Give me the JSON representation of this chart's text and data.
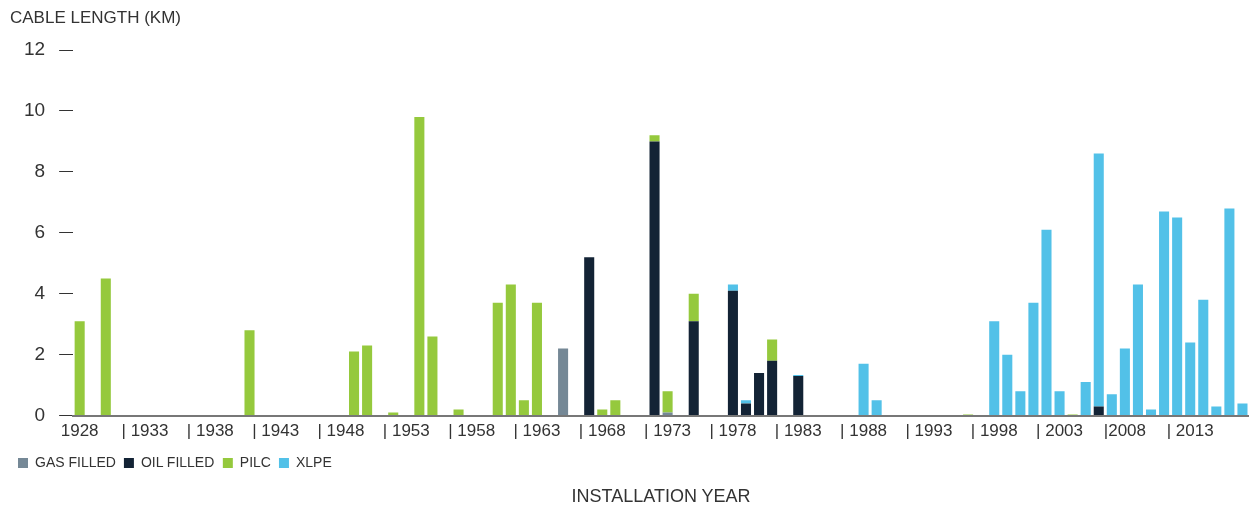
{
  "chart_data": {
    "type": "bar",
    "stacked": true,
    "ylabel": "CABLE LENGTH (KM)",
    "xlabel": "INSTALLATION YEAR",
    "legend": "bottom left",
    "ylim": [
      0,
      12
    ],
    "yticks": [
      0,
      2,
      4,
      6,
      8,
      10,
      12
    ],
    "categories": [
      "1928",
      null,
      null,
      null,
      null,
      "| 1933",
      null,
      null,
      null,
      null,
      "| 1938",
      null,
      null,
      null,
      null,
      "| 1943",
      null,
      null,
      null,
      null,
      "| 1948",
      null,
      null,
      null,
      null,
      "| 1953",
      null,
      null,
      null,
      null,
      "| 1958",
      null,
      null,
      null,
      null,
      "| 1963",
      null,
      null,
      null,
      null,
      "| 1968",
      null,
      null,
      null,
      null,
      "| 1973",
      null,
      null,
      null,
      null,
      "| 1978",
      null,
      null,
      null,
      null,
      "| 1983",
      null,
      null,
      null,
      null,
      "| 1988",
      null,
      null,
      null,
      null,
      "| 1993",
      null,
      null,
      null,
      null,
      "| 1998",
      null,
      null,
      null,
      null,
      "| 2003",
      null,
      null,
      null,
      null,
      "|2008",
      null,
      null,
      null,
      null,
      "| 2013",
      null,
      null,
      null,
      null
    ],
    "series": [
      {
        "name": "GAS FILLED",
        "color": "#758896",
        "values": [
          null,
          null,
          null,
          null,
          null,
          null,
          null,
          null,
          null,
          null,
          null,
          null,
          null,
          null,
          null,
          null,
          null,
          null,
          null,
          null,
          null,
          null,
          null,
          null,
          null,
          null,
          null,
          null,
          null,
          null,
          null,
          null,
          null,
          null,
          null,
          null,
          null,
          2.2,
          null,
          null,
          null,
          null,
          null,
          null,
          null,
          0.1,
          null,
          null,
          null,
          null,
          null,
          null,
          null,
          null,
          null,
          null,
          null,
          null,
          null,
          null,
          null,
          null,
          null,
          null,
          null,
          null,
          null,
          null,
          null,
          null,
          null,
          null,
          null,
          null,
          null,
          null,
          null,
          null,
          null,
          null,
          null,
          null,
          null,
          null,
          null,
          null,
          null,
          null,
          null,
          null
        ]
      },
      {
        "name": "OIL FILLED",
        "color": "#132335",
        "values": [
          null,
          null,
          null,
          null,
          null,
          null,
          null,
          null,
          null,
          null,
          null,
          null,
          null,
          null,
          null,
          null,
          null,
          null,
          null,
          null,
          null,
          null,
          null,
          null,
          null,
          null,
          null,
          null,
          null,
          null,
          null,
          null,
          null,
          null,
          null,
          null,
          null,
          null,
          null,
          5.2,
          null,
          null,
          null,
          null,
          9.0,
          null,
          null,
          3.1,
          null,
          null,
          4.1,
          0.4,
          1.4,
          1.8,
          null,
          1.3,
          null,
          null,
          null,
          null,
          null,
          null,
          null,
          null,
          null,
          null,
          null,
          null,
          null,
          0.02,
          null,
          null,
          null,
          null,
          null,
          null,
          null,
          null,
          0.3,
          null,
          null,
          null,
          null,
          null,
          null,
          null,
          null,
          null,
          null,
          null
        ]
      },
      {
        "name": "PILC",
        "color": "#95c93d",
        "values": [
          3.1,
          null,
          4.5,
          null,
          null,
          null,
          null,
          null,
          null,
          null,
          null,
          null,
          null,
          2.8,
          null,
          null,
          null,
          null,
          null,
          null,
          null,
          2.1,
          2.3,
          null,
          0.1,
          null,
          9.8,
          2.6,
          null,
          0.2,
          null,
          null,
          3.7,
          4.3,
          0.5,
          3.7,
          null,
          null,
          null,
          null,
          0.2,
          0.5,
          null,
          null,
          0.2,
          0.7,
          null,
          0.9,
          null,
          null,
          null,
          null,
          null,
          0.7,
          null,
          null,
          null,
          null,
          null,
          null,
          null,
          null,
          null,
          null,
          null,
          null,
          null,
          null,
          0.04,
          null,
          null,
          null,
          null,
          null,
          null,
          null,
          0.04,
          null,
          null,
          null,
          null,
          null,
          null,
          null,
          null,
          null,
          null,
          null,
          null,
          null
        ]
      },
      {
        "name": "XLPE",
        "color": "#52c1e8",
        "values": [
          null,
          null,
          null,
          null,
          null,
          null,
          null,
          null,
          null,
          null,
          null,
          null,
          null,
          null,
          null,
          null,
          null,
          null,
          null,
          null,
          null,
          null,
          null,
          null,
          null,
          null,
          null,
          null,
          null,
          null,
          null,
          null,
          null,
          null,
          null,
          null,
          null,
          null,
          null,
          null,
          null,
          null,
          null,
          null,
          null,
          null,
          null,
          null,
          null,
          null,
          0.2,
          0.1,
          null,
          null,
          null,
          0.03,
          null,
          null,
          null,
          null,
          1.7,
          0.5,
          null,
          null,
          null,
          null,
          null,
          null,
          null,
          null,
          3.1,
          2.0,
          0.8,
          3.7,
          6.1,
          0.8,
          null,
          1.1,
          8.3,
          0.7,
          2.2,
          4.3,
          0.2,
          6.7,
          6.5,
          2.4,
          3.8,
          0.3,
          6.8,
          0.4
        ]
      }
    ]
  }
}
